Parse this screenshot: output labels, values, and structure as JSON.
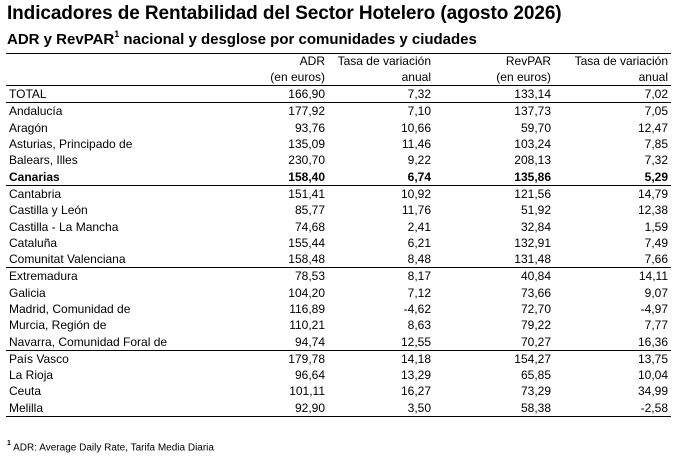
{
  "title": "Indicadores de Rentabilidad del Sector Hotelero (agosto 2026)",
  "subtitle": {
    "text": "ADR y RevPAR",
    "sup": "1",
    "rest": " nacional y desglose por comunidades y ciudades"
  },
  "headers": [
    {
      "line1": "ADR",
      "line2": "(en euros)"
    },
    {
      "line1": "Tasa de variación",
      "line2": "anual"
    },
    {
      "line1": "RevPAR",
      "line2": "(en euros)"
    },
    {
      "line1": "Tasa de variación",
      "line2": "anual"
    }
  ],
  "rows": [
    {
      "name": "TOTAL",
      "adr": "166,90",
      "adr_var": "7,32",
      "revpar": "133,14",
      "revpar_var": "7,02",
      "sep": false,
      "bold": false
    },
    {
      "name": "Andalucía",
      "adr": "177,92",
      "adr_var": "7,10",
      "revpar": "137,73",
      "revpar_var": "7,05",
      "sep": true,
      "bold": false
    },
    {
      "name": "Aragón",
      "adr": "93,76",
      "adr_var": "10,66",
      "revpar": "59,70",
      "revpar_var": "12,47",
      "sep": false,
      "bold": false
    },
    {
      "name": "Asturias, Principado de",
      "adr": "135,09",
      "adr_var": "11,46",
      "revpar": "103,24",
      "revpar_var": "7,85",
      "sep": false,
      "bold": false
    },
    {
      "name": "Balears, Illes",
      "adr": "230,70",
      "adr_var": "9,22",
      "revpar": "208,13",
      "revpar_var": "7,32",
      "sep": false,
      "bold": false
    },
    {
      "name": "Canarias",
      "adr": "158,40",
      "adr_var": "6,74",
      "revpar": "135,86",
      "revpar_var": "5,29",
      "sep": false,
      "bold": true
    },
    {
      "name": "Cantabria",
      "adr": "151,41",
      "adr_var": "10,92",
      "revpar": "121,56",
      "revpar_var": "14,79",
      "sep": true,
      "bold": false
    },
    {
      "name": "Castilla y León",
      "adr": "85,77",
      "adr_var": "11,76",
      "revpar": "51,92",
      "revpar_var": "12,38",
      "sep": false,
      "bold": false
    },
    {
      "name": "Castilla - La Mancha",
      "adr": "74,68",
      "adr_var": "2,41",
      "revpar": "32,84",
      "revpar_var": "1,59",
      "sep": false,
      "bold": false
    },
    {
      "name": "Cataluña",
      "adr": "155,44",
      "adr_var": "6,21",
      "revpar": "132,91",
      "revpar_var": "7,49",
      "sep": false,
      "bold": false
    },
    {
      "name": "Comunitat Valenciana",
      "adr": "158,48",
      "adr_var": "8,48",
      "revpar": "131,48",
      "revpar_var": "7,66",
      "sep": false,
      "bold": false
    },
    {
      "name": "Extremadura",
      "adr": "78,53",
      "adr_var": "8,17",
      "revpar": "40,84",
      "revpar_var": "14,11",
      "sep": true,
      "bold": false
    },
    {
      "name": "Galicia",
      "adr": "104,20",
      "adr_var": "7,12",
      "revpar": "73,66",
      "revpar_var": "9,07",
      "sep": false,
      "bold": false
    },
    {
      "name": "Madrid, Comunidad de",
      "adr": "116,89",
      "adr_var": "-4,62",
      "revpar": "72,70",
      "revpar_var": "-4,97",
      "sep": false,
      "bold": false
    },
    {
      "name": "Murcia, Región de",
      "adr": "110,21",
      "adr_var": "8,63",
      "revpar": "79,22",
      "revpar_var": "7,77",
      "sep": false,
      "bold": false
    },
    {
      "name": "Navarra, Comunidad Foral de",
      "adr": "94,74",
      "adr_var": "12,55",
      "revpar": "70,27",
      "revpar_var": "16,36",
      "sep": false,
      "bold": false
    },
    {
      "name": "País Vasco",
      "adr": "179,78",
      "adr_var": "14,18",
      "revpar": "154,27",
      "revpar_var": "13,75",
      "sep": true,
      "bold": false
    },
    {
      "name": "La Rioja",
      "adr": "96,64",
      "adr_var": "13,29",
      "revpar": "65,85",
      "revpar_var": "10,04",
      "sep": false,
      "bold": false
    },
    {
      "name": "Ceuta",
      "adr": "101,11",
      "adr_var": "16,27",
      "revpar": "73,29",
      "revpar_var": "34,99",
      "sep": false,
      "bold": false
    },
    {
      "name": "Melilla",
      "adr": "92,90",
      "adr_var": "3,50",
      "revpar": "58,38",
      "revpar_var": "-2,58",
      "sep": false,
      "bold": false
    }
  ],
  "footnote": {
    "sup": "1",
    "text": " ADR: Average Daily Rate, Tarifa Media Diaria"
  }
}
